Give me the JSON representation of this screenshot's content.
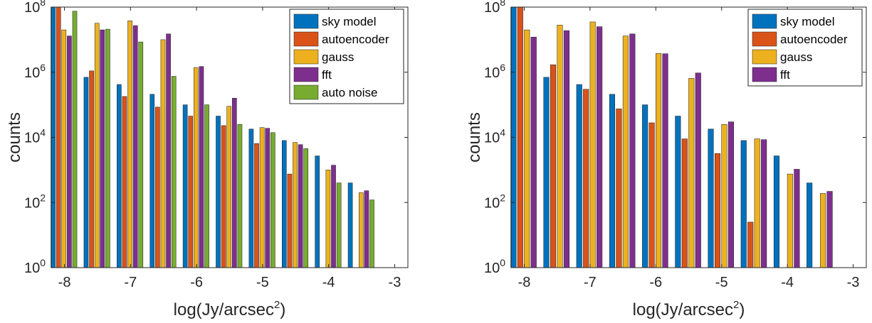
{
  "chart_data": [
    {
      "type": "bar",
      "y_scale": "log",
      "xlabel": "log(Jy/arcsec",
      "xlabel_sup": "2",
      "xlabel_close": ")",
      "ylabel": "counts",
      "xlim": [
        -8.2,
        -2.8
      ],
      "ylim": [
        1,
        100000000
      ],
      "xticks": [
        "-8",
        "-7",
        "-6",
        "-5",
        "-4",
        "-3"
      ],
      "xtick_values": [
        -8,
        -7,
        -6,
        -5,
        -4,
        -3
      ],
      "yticks": [
        {
          "base": "10",
          "exp": "0",
          "value": 1
        },
        {
          "base": "10",
          "exp": "2",
          "value": 100
        },
        {
          "base": "10",
          "exp": "4",
          "value": 10000
        },
        {
          "base": "10",
          "exp": "6",
          "value": 1000000
        },
        {
          "base": "10",
          "exp": "8",
          "value": 100000000
        }
      ],
      "legend_position": "top-right",
      "x": [
        -8.0,
        -7.5,
        -7.0,
        -6.5,
        -6.0,
        -5.5,
        -5.0,
        -4.5,
        -4.0,
        -3.5
      ],
      "series": [
        {
          "name": "sky model",
          "color": "#0072BD",
          "values": [
            100000000,
            700000,
            420000,
            210000,
            100000,
            45000,
            18000,
            8000,
            2700,
            400
          ]
        },
        {
          "name": "autoencoder",
          "color": "#D95319",
          "values": [
            100000000,
            1100000,
            180000,
            85000,
            45000,
            23000,
            6500,
            750,
            null,
            null
          ]
        },
        {
          "name": "gauss",
          "color": "#EDB120",
          "values": [
            20000000,
            32000000,
            38000000,
            10000000,
            1400000,
            90000,
            20000,
            7000,
            1000,
            200
          ]
        },
        {
          "name": "fft",
          "color": "#7E2F8E",
          "values": [
            13000000,
            20000000,
            27000000,
            15000000,
            1500000,
            160000,
            19000,
            6000,
            1400,
            230
          ]
        },
        {
          "name": "auto noise",
          "color": "#77AC30",
          "values": [
            75000000,
            21000000,
            8500000,
            750000,
            100000,
            25000,
            14000,
            4500,
            400,
            120
          ]
        }
      ]
    },
    {
      "type": "bar",
      "y_scale": "log",
      "xlabel": "log(Jy/arcsec",
      "xlabel_sup": "2",
      "xlabel_close": ")",
      "ylabel": "counts",
      "xlim": [
        -8.2,
        -2.8
      ],
      "ylim": [
        1,
        100000000
      ],
      "xticks": [
        "-8",
        "-7",
        "-6",
        "-5",
        "-4",
        "-3"
      ],
      "xtick_values": [
        -8,
        -7,
        -6,
        -5,
        -4,
        -3
      ],
      "yticks": [
        {
          "base": "10",
          "exp": "0",
          "value": 1
        },
        {
          "base": "10",
          "exp": "2",
          "value": 100
        },
        {
          "base": "10",
          "exp": "4",
          "value": 10000
        },
        {
          "base": "10",
          "exp": "6",
          "value": 1000000
        },
        {
          "base": "10",
          "exp": "8",
          "value": 100000000
        }
      ],
      "legend_position": "top-right",
      "x": [
        -8.0,
        -7.5,
        -7.0,
        -6.5,
        -6.0,
        -5.5,
        -5.0,
        -4.5,
        -4.0,
        -3.5
      ],
      "series": [
        {
          "name": "sky model",
          "color": "#0072BD",
          "values": [
            100000000,
            700000,
            420000,
            210000,
            100000,
            45000,
            18000,
            8000,
            2700,
            400
          ]
        },
        {
          "name": "autoencoder",
          "color": "#D95319",
          "values": [
            100000000,
            1700000,
            300000,
            75000,
            28000,
            9000,
            3200,
            25,
            null,
            null
          ]
        },
        {
          "name": "gauss",
          "color": "#EDB120",
          "values": [
            20000000,
            28000000,
            35000000,
            13000000,
            3800000,
            650000,
            25000,
            9000,
            750,
            190
          ]
        },
        {
          "name": "fft",
          "color": "#7E2F8E",
          "values": [
            12000000,
            19000000,
            25000000,
            15000000,
            3700000,
            950000,
            30000,
            8500,
            1050,
            220
          ]
        }
      ]
    }
  ]
}
